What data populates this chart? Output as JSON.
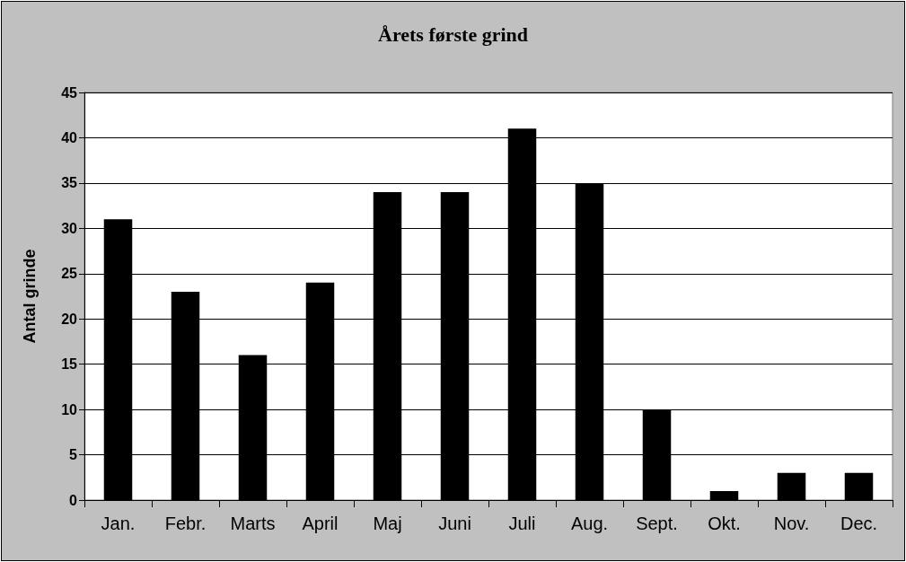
{
  "chart_data": {
    "type": "bar",
    "title": "Årets første grind",
    "ylabel": "Antal grinde",
    "categories": [
      "Jan.",
      "Febr.",
      "Marts",
      "April",
      "Maj",
      "Juni",
      "Juli",
      "Aug.",
      "Sept.",
      "Okt.",
      "Nov.",
      "Dec."
    ],
    "values": [
      31,
      23,
      16,
      24,
      34,
      34,
      41,
      35,
      10,
      1,
      3,
      3
    ],
    "color": "#000000",
    "ylim": [
      0,
      45
    ],
    "yticks": [
      0,
      5,
      10,
      15,
      20,
      25,
      30,
      35,
      40,
      45
    ],
    "grid": "y"
  }
}
